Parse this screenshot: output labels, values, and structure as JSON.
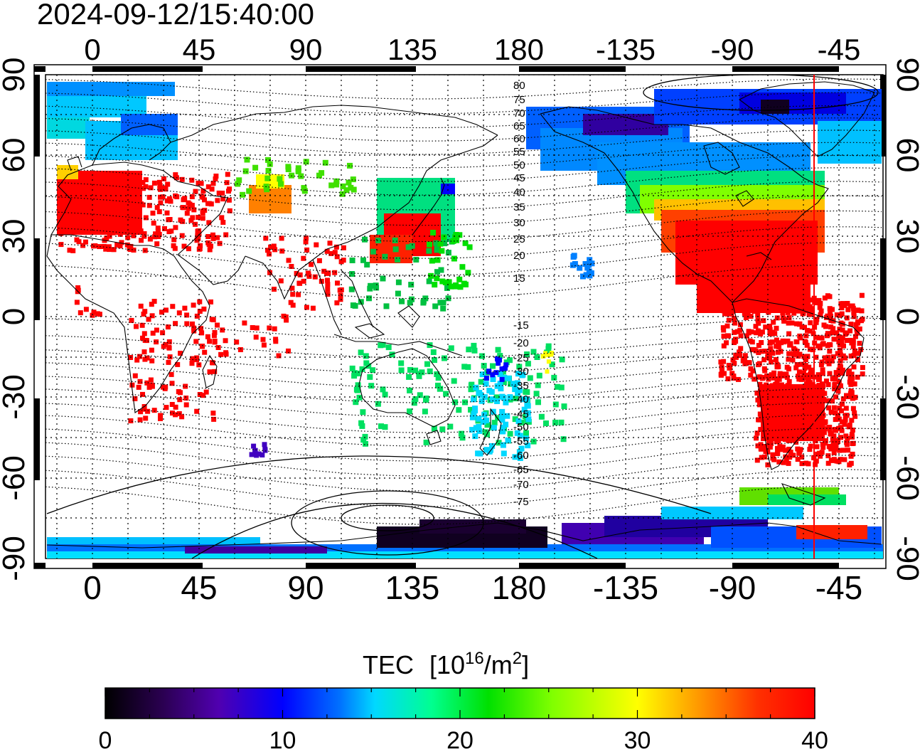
{
  "timestamp": "2024-09-12/15:40:00",
  "map": {
    "top_lon_labels": [
      "0",
      "45",
      "90",
      "135",
      "180",
      "-135",
      "-90",
      "-45"
    ],
    "bottom_lon_labels": [
      "0",
      "45",
      "90",
      "135",
      "180",
      "-135",
      "-90",
      "-45"
    ],
    "left_lat_labels": [
      "90",
      "60",
      "30",
      "0",
      "-30",
      "-60",
      "-90"
    ],
    "right_lat_labels": [
      "90",
      "60",
      "30",
      "0",
      "-30",
      "-60",
      "-90"
    ],
    "contour_labels": [
      "80",
      "75",
      "70",
      "65",
      "60",
      "55",
      "50",
      "45",
      "40",
      "35",
      "30",
      "25",
      "20",
      "15",
      "-15",
      "-20",
      "-25",
      "-30",
      "-35",
      "-40",
      "-45",
      "-50",
      "-55",
      "-60",
      "-65",
      "-70",
      "-75"
    ],
    "terminator_color": "#ff0000"
  },
  "colorbar": {
    "title": "TEC",
    "unit_base": "[10",
    "unit_exp1": "16",
    "unit_mid": "/m",
    "unit_exp2": "2",
    "unit_end": "]",
    "tick_labels": [
      "0",
      "10",
      "20",
      "30",
      "40"
    ],
    "range": [
      0,
      40
    ],
    "colors": [
      "#000000",
      "#3a0070",
      "#5a00c8",
      "#0000ff",
      "#0080ff",
      "#00e8ff",
      "#00ff80",
      "#00e000",
      "#a0ff00",
      "#ffff00",
      "#ffa000",
      "#ff4000",
      "#ff0000"
    ]
  }
}
